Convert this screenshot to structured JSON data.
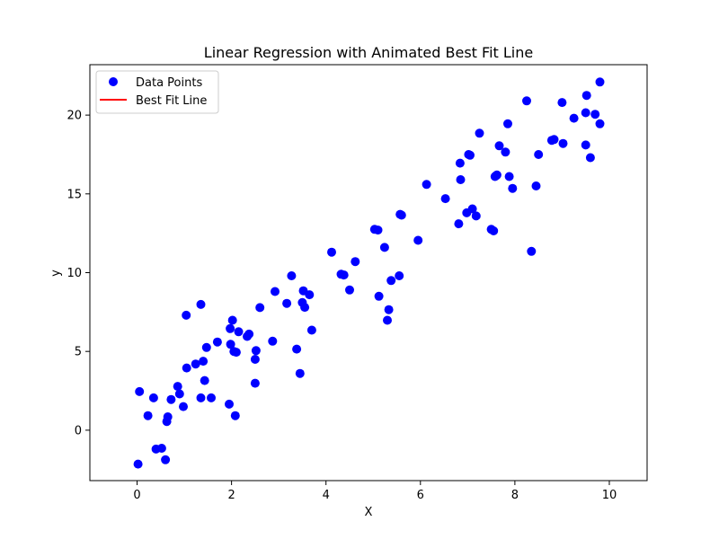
{
  "chart_data": {
    "type": "scatter",
    "title": "Linear Regression with Animated Best Fit Line",
    "xlabel": "X",
    "ylabel": "y",
    "xlim": [
      -1,
      10.8
    ],
    "ylim": [
      -3.2,
      23.2
    ],
    "xticks": [
      0,
      2,
      4,
      6,
      8,
      10
    ],
    "yticks": [
      0,
      5,
      10,
      15,
      20
    ],
    "grid": false,
    "legend_position": "top-left",
    "series": [
      {
        "name": "Data Points",
        "kind": "scatter",
        "color": "#0000ff",
        "points": [
          [
            0.02,
            -2.15
          ],
          [
            0.05,
            2.45
          ],
          [
            0.23,
            0.92
          ],
          [
            0.35,
            2.05
          ],
          [
            0.4,
            -1.2
          ],
          [
            0.52,
            -1.15
          ],
          [
            0.6,
            -1.88
          ],
          [
            0.63,
            0.55
          ],
          [
            0.65,
            0.85
          ],
          [
            0.72,
            1.95
          ],
          [
            0.86,
            2.78
          ],
          [
            0.9,
            2.3
          ],
          [
            0.98,
            1.5
          ],
          [
            1.04,
            7.3
          ],
          [
            1.05,
            3.95
          ],
          [
            1.24,
            4.2
          ],
          [
            1.35,
            7.98
          ],
          [
            1.35,
            2.05
          ],
          [
            1.4,
            4.38
          ],
          [
            1.43,
            3.15
          ],
          [
            1.47,
            5.25
          ],
          [
            1.57,
            2.05
          ],
          [
            1.7,
            5.6
          ],
          [
            1.95,
            1.65
          ],
          [
            1.97,
            6.45
          ],
          [
            1.98,
            5.45
          ],
          [
            2.02,
            6.98
          ],
          [
            2.05,
            5.0
          ],
          [
            2.08,
            0.92
          ],
          [
            2.1,
            4.95
          ],
          [
            2.15,
            6.25
          ],
          [
            2.33,
            5.95
          ],
          [
            2.37,
            6.1
          ],
          [
            2.5,
            2.98
          ],
          [
            2.5,
            4.5
          ],
          [
            2.52,
            5.05
          ],
          [
            2.6,
            7.78
          ],
          [
            2.87,
            5.65
          ],
          [
            2.92,
            8.8
          ],
          [
            3.17,
            8.05
          ],
          [
            3.27,
            9.8
          ],
          [
            3.38,
            5.15
          ],
          [
            3.45,
            3.6
          ],
          [
            3.5,
            8.1
          ],
          [
            3.52,
            8.85
          ],
          [
            3.55,
            7.8
          ],
          [
            3.65,
            8.6
          ],
          [
            3.7,
            6.35
          ],
          [
            4.12,
            11.3
          ],
          [
            4.32,
            9.9
          ],
          [
            4.38,
            9.85
          ],
          [
            4.5,
            8.9
          ],
          [
            4.62,
            10.7
          ],
          [
            5.03,
            12.75
          ],
          [
            5.1,
            12.7
          ],
          [
            5.12,
            8.5
          ],
          [
            5.24,
            11.6
          ],
          [
            5.3,
            6.98
          ],
          [
            5.33,
            7.65
          ],
          [
            5.38,
            9.5
          ],
          [
            5.55,
            9.8
          ],
          [
            5.57,
            13.7
          ],
          [
            5.6,
            13.65
          ],
          [
            5.95,
            12.05
          ],
          [
            6.13,
            15.6
          ],
          [
            6.53,
            14.7
          ],
          [
            6.81,
            13.1
          ],
          [
            6.84,
            16.95
          ],
          [
            6.85,
            15.9
          ],
          [
            6.98,
            13.8
          ],
          [
            7.02,
            17.5
          ],
          [
            7.05,
            17.45
          ],
          [
            7.1,
            14.05
          ],
          [
            7.18,
            13.6
          ],
          [
            7.25,
            18.85
          ],
          [
            7.5,
            12.75
          ],
          [
            7.55,
            12.65
          ],
          [
            7.58,
            16.1
          ],
          [
            7.6,
            16.15
          ],
          [
            7.62,
            16.2
          ],
          [
            7.67,
            18.05
          ],
          [
            7.8,
            17.65
          ],
          [
            7.85,
            19.45
          ],
          [
            7.88,
            16.1
          ],
          [
            7.95,
            15.35
          ],
          [
            8.25,
            20.9
          ],
          [
            8.35,
            11.35
          ],
          [
            8.45,
            15.5
          ],
          [
            8.5,
            17.5
          ],
          [
            8.78,
            18.4
          ],
          [
            8.83,
            18.45
          ],
          [
            9.0,
            20.8
          ],
          [
            9.02,
            18.2
          ],
          [
            9.25,
            19.8
          ],
          [
            9.5,
            20.15
          ],
          [
            9.5,
            18.1
          ],
          [
            9.52,
            21.25
          ],
          [
            9.6,
            17.3
          ],
          [
            9.7,
            20.05
          ],
          [
            9.8,
            22.1
          ],
          [
            9.8,
            19.45
          ]
        ]
      },
      {
        "name": "Best Fit Line",
        "kind": "line",
        "color": "#ff0000",
        "points": []
      }
    ]
  }
}
